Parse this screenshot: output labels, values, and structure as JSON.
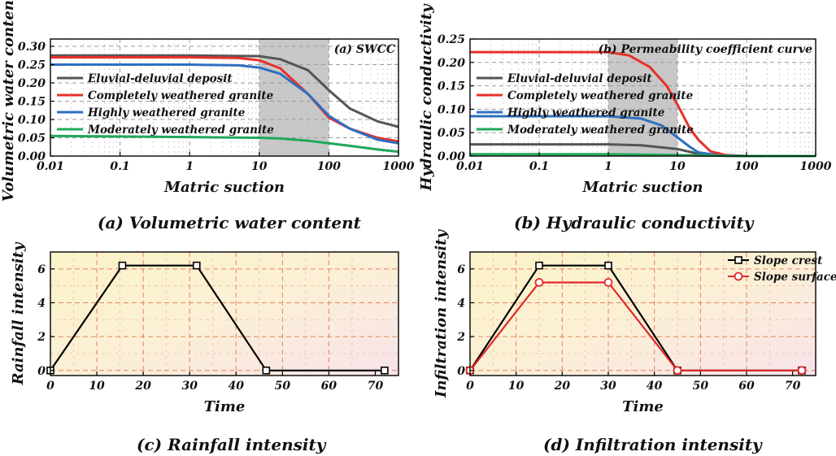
{
  "captions": {
    "a": "(a) Volumetric water content",
    "b": "(b) Hydraulic conductivity",
    "c": "(c) Rainfall intensity",
    "d": "(d) Infiltration intensity"
  },
  "chart_data": [
    {
      "id": "a",
      "type": "line",
      "title": "(a) SWCC",
      "xlabel": "Matric suction",
      "ylabel": "Volumetric water content",
      "xscale": "log",
      "xlim": [
        0.01,
        1000
      ],
      "ylim": [
        0,
        0.32
      ],
      "xticks": [
        0.01,
        0.1,
        1,
        10,
        100,
        1000
      ],
      "xtick_labels": [
        "0.01",
        "0.1",
        "1",
        "10",
        "100",
        "1000"
      ],
      "yticks": [
        0,
        0.05,
        0.1,
        0.15,
        0.2,
        0.25,
        0.3
      ],
      "ytick_labels": [
        "0.00",
        "0.05",
        "0.10",
        "0.15",
        "0.20",
        "0.25",
        "0.30"
      ],
      "shaded_x": [
        10,
        100
      ],
      "grid": true,
      "legend_position": "upper-left",
      "series": [
        {
          "name": "Eluvial-deluvial deposit",
          "color": "#555555",
          "x": [
            0.01,
            1,
            10,
            20,
            50,
            100,
            200,
            500,
            1000
          ],
          "y": [
            0.275,
            0.275,
            0.273,
            0.265,
            0.235,
            0.18,
            0.13,
            0.095,
            0.08
          ]
        },
        {
          "name": "Completely weathered granite",
          "color": "#e8302a",
          "x": [
            0.01,
            1,
            5,
            10,
            20,
            50,
            100,
            200,
            500,
            1000
          ],
          "y": [
            0.27,
            0.27,
            0.268,
            0.262,
            0.24,
            0.17,
            0.105,
            0.075,
            0.05,
            0.04
          ]
        },
        {
          "name": "Highly weathered granite",
          "color": "#2f6fbf",
          "x": [
            0.01,
            1,
            5,
            10,
            20,
            50,
            100,
            200,
            500,
            1000
          ],
          "y": [
            0.25,
            0.25,
            0.248,
            0.242,
            0.225,
            0.17,
            0.11,
            0.075,
            0.045,
            0.035
          ]
        },
        {
          "name": "Moderately weathered granite",
          "color": "#1fa85a",
          "x": [
            0.01,
            1,
            10,
            20,
            50,
            100,
            200,
            500,
            1000
          ],
          "y": [
            0.055,
            0.052,
            0.05,
            0.048,
            0.042,
            0.035,
            0.028,
            0.018,
            0.012
          ]
        }
      ]
    },
    {
      "id": "b",
      "type": "line",
      "title": "(b) Permeability coefficient curve",
      "xlabel": "Matric suction",
      "ylabel": "Hydraulic conductivity",
      "xscale": "log",
      "xlim": [
        0.01,
        1000
      ],
      "ylim": [
        0,
        0.25
      ],
      "xticks": [
        0.01,
        0.1,
        1,
        10,
        100,
        1000
      ],
      "xtick_labels": [
        "0.01",
        "0.1",
        "1",
        "10",
        "100",
        "1000"
      ],
      "yticks": [
        0,
        0.05,
        0.1,
        0.15,
        0.2,
        0.25
      ],
      "ytick_labels": [
        "0.00",
        "0.05",
        "0.10",
        "0.15",
        "0.20",
        "0.25"
      ],
      "shaded_x": [
        1,
        10
      ],
      "grid": true,
      "legend_position": "middle-left",
      "series": [
        {
          "name": "Eluvial-deluvial deposit",
          "color": "#555555",
          "x": [
            0.01,
            1,
            3,
            10,
            20,
            50,
            100,
            1000
          ],
          "y": [
            0.025,
            0.025,
            0.023,
            0.015,
            0.005,
            0.001,
            0,
            0
          ]
        },
        {
          "name": "Completely weathered granite",
          "color": "#e8302a",
          "x": [
            0.01,
            1,
            2,
            4,
            7,
            10,
            15,
            20,
            30,
            50,
            100,
            1000
          ],
          "y": [
            0.222,
            0.222,
            0.215,
            0.19,
            0.15,
            0.11,
            0.06,
            0.035,
            0.01,
            0.002,
            0,
            0
          ]
        },
        {
          "name": "Highly weathered granite",
          "color": "#2f6fbf",
          "x": [
            0.01,
            1,
            3,
            6,
            10,
            15,
            20,
            40,
            100,
            1000
          ],
          "y": [
            0.085,
            0.085,
            0.08,
            0.065,
            0.04,
            0.02,
            0.008,
            0.001,
            0,
            0
          ]
        },
        {
          "name": "Moderately weathered granite",
          "color": "#1fa85a",
          "x": [
            0.01,
            1,
            10,
            100,
            1000
          ],
          "y": [
            0.004,
            0.004,
            0.002,
            0,
            0
          ]
        }
      ]
    },
    {
      "id": "c",
      "type": "line",
      "title": "",
      "xlabel": "Time",
      "ylabel": "Rainfall intensity",
      "xscale": "linear",
      "xlim": [
        0,
        75
      ],
      "ylim": [
        -0.3,
        7
      ],
      "xticks": [
        0,
        10,
        20,
        30,
        40,
        50,
        60,
        70
      ],
      "xtick_labels": [
        "0",
        "10",
        "20",
        "30",
        "40",
        "50",
        "60",
        "70"
      ],
      "yticks": [
        0,
        2,
        4,
        6
      ],
      "ytick_labels": [
        "0",
        "2",
        "4",
        "6"
      ],
      "grid": true,
      "series": [
        {
          "name": "",
          "color": "#000000",
          "marker": "square",
          "x": [
            0,
            15.5,
            31.5,
            46.5,
            72
          ],
          "y": [
            0,
            6.2,
            6.2,
            0,
            0
          ]
        }
      ]
    },
    {
      "id": "d",
      "type": "line",
      "title": "",
      "xlabel": "Time",
      "ylabel": "Infiltration intensity",
      "xscale": "linear",
      "xlim": [
        0,
        75
      ],
      "ylim": [
        -0.3,
        7
      ],
      "xticks": [
        0,
        10,
        20,
        30,
        40,
        50,
        60,
        70
      ],
      "xtick_labels": [
        "0",
        "10",
        "20",
        "30",
        "40",
        "50",
        "60",
        "70"
      ],
      "yticks": [
        0,
        2,
        4,
        6
      ],
      "ytick_labels": [
        "0",
        "2",
        "4",
        "6"
      ],
      "grid": true,
      "legend_position": "upper-right",
      "series": [
        {
          "name": "Slope crest",
          "color": "#000000",
          "marker": "square",
          "x": [
            0,
            15,
            30,
            45,
            72
          ],
          "y": [
            0,
            6.2,
            6.2,
            0,
            0
          ]
        },
        {
          "name": "Slope surface",
          "color": "#e0282a",
          "marker": "circle",
          "x": [
            0,
            15,
            30,
            45,
            72
          ],
          "y": [
            0,
            5.2,
            5.2,
            0,
            0
          ]
        }
      ]
    }
  ]
}
